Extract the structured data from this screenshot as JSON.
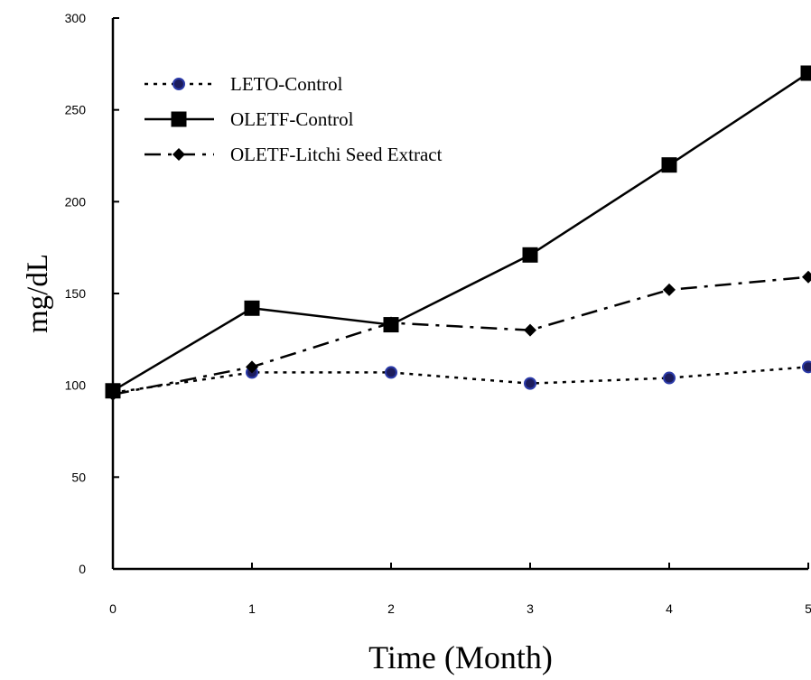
{
  "chart_data": {
    "type": "line",
    "xlabel": "Time (Month)",
    "ylabel": "mg/dL",
    "x": [
      0,
      1,
      2,
      3,
      4,
      5
    ],
    "x_tick_labels": [
      "0",
      "1",
      "2",
      "3",
      "4",
      "5"
    ],
    "y_tick_labels": [
      "0",
      "50",
      "100",
      "150",
      "200",
      "250",
      "300"
    ],
    "xlim": [
      0,
      5
    ],
    "ylim": [
      0,
      300
    ],
    "grid": false,
    "legend_position": "top-left",
    "series": [
      {
        "name": "LETO-Control",
        "values": [
          96,
          107,
          107,
          101,
          104,
          110
        ],
        "line_style": "dotted",
        "marker": "circle",
        "marker_color": "#1c1c5c"
      },
      {
        "name": "OLETF-Control",
        "values": [
          97,
          142,
          133,
          171,
          220,
          270
        ],
        "line_style": "solid",
        "marker": "square",
        "marker_color": "#000000"
      },
      {
        "name": "OLETF-Litchi Seed Extract",
        "values": [
          95,
          110,
          134,
          130,
          152,
          159
        ],
        "line_style": "dash-dot",
        "marker": "diamond",
        "marker_color": "#000000"
      }
    ]
  }
}
